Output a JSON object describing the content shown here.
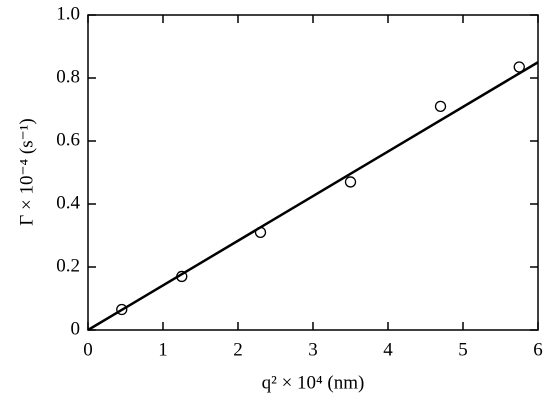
{
  "chart_data": {
    "type": "scatter",
    "x_label": "q² × 10⁴ (nm)",
    "y_label": "Γ × 10⁻⁴ (s⁻¹)",
    "x": [
      0.45,
      1.25,
      2.3,
      3.5,
      4.7,
      5.75
    ],
    "values": [
      0.065,
      0.17,
      0.31,
      0.47,
      0.71,
      0.835
    ],
    "color": "#000000",
    "fit": {
      "type": "line",
      "x": [
        0,
        6
      ],
      "values": [
        0,
        0.85
      ],
      "color": "#000000"
    },
    "xlim": [
      0,
      6
    ],
    "xticks": [
      0,
      1,
      2,
      3,
      4,
      5,
      6
    ],
    "ylim": [
      0,
      1
    ],
    "yticks": [
      0,
      0.2,
      0.4,
      0.6,
      0.8,
      {
        "value": 1,
        "label": "1.0"
      }
    ]
  }
}
